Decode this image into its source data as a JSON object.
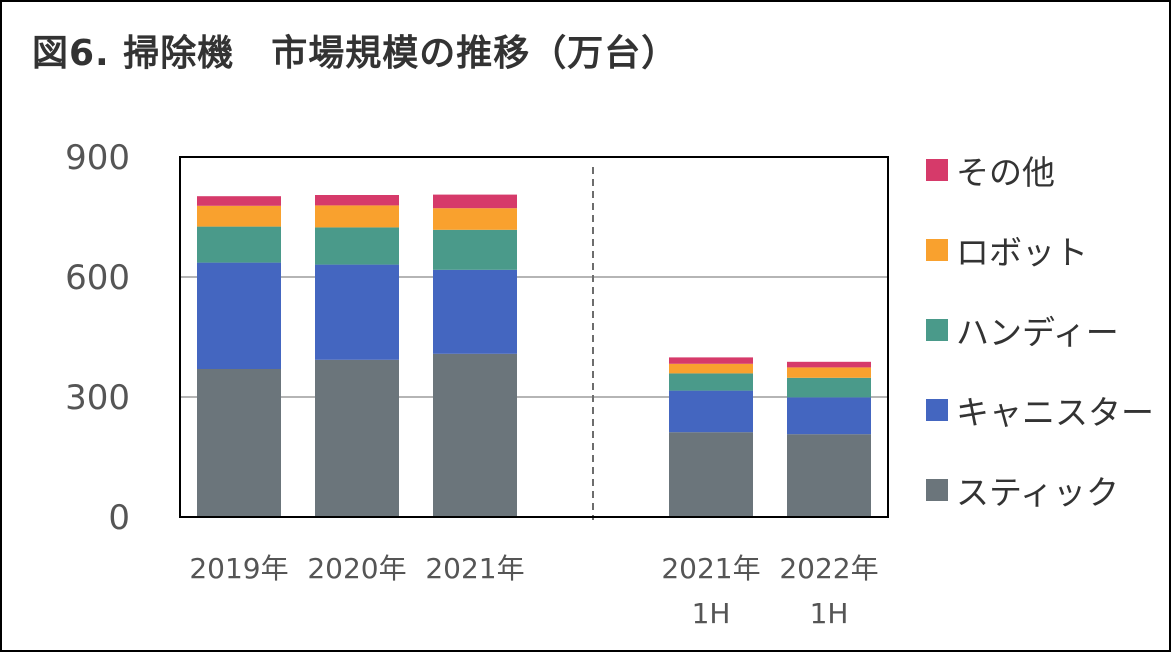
{
  "title": "図6. 掃除機　市場規模の推移（万台）",
  "chart_data": {
    "type": "bar",
    "stacked": true,
    "categories": [
      "2019年",
      "2020年",
      "2021年",
      "2021年\n1H",
      "2022年\n1H"
    ],
    "series": [
      {
        "name": "スティック",
        "color": "#6b757b",
        "values": [
          370,
          393,
          408,
          212,
          207
        ]
      },
      {
        "name": "キャニスター",
        "color": "#4466c0",
        "values": [
          266,
          238,
          210,
          104,
          92
        ]
      },
      {
        "name": "ハンディー",
        "color": "#4a9a8a",
        "values": [
          90,
          93,
          100,
          43,
          49
        ]
      },
      {
        "name": "ロボット",
        "color": "#f9a12e",
        "values": [
          52,
          55,
          54,
          24,
          26
        ]
      },
      {
        "name": "その他",
        "color": "#d63a6a",
        "values": [
          24,
          26,
          34,
          16,
          14
        ]
      }
    ],
    "yticks": [
      "0",
      "300",
      "600",
      "900"
    ],
    "ylim": [
      0,
      900
    ],
    "grid": true,
    "separator_after_category": 2,
    "legend_position": "right"
  }
}
